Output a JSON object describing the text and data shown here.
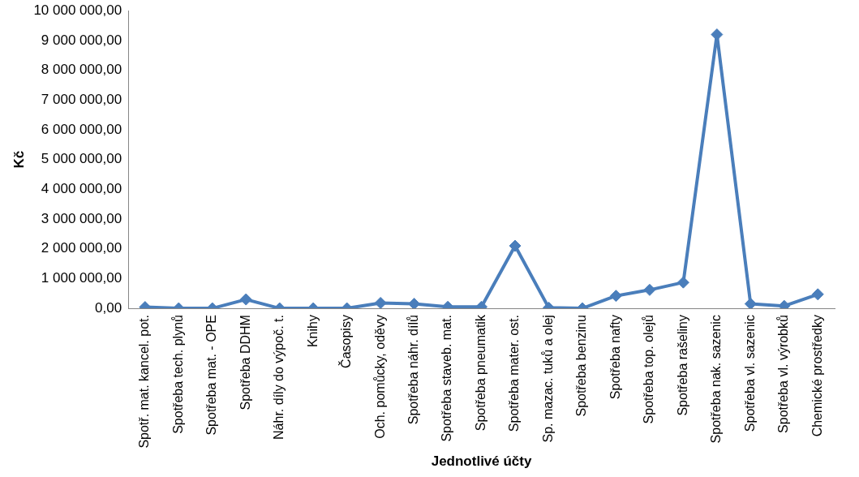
{
  "chart_data": {
    "type": "line",
    "xlabel": "Jednotlivé účty",
    "ylabel": "Kč",
    "categories": [
      "Spotř. mat. kancel. pot.",
      "Spotřeba tech. plynů",
      "Spotřeba mat. - OPE",
      "Spotřeba DDHM",
      "Náhr. díly do výpoč. t.",
      "Knihy",
      "Časopisy",
      "Och. pomůcky, oděvy",
      "Spotřeba náhr. dílů",
      "Spotřeba staveb. mat.",
      "Spotřeba pneumatik",
      "Spotřeba mater. ost.",
      "Sp. mazac. tuků a olej",
      "Spotřeba benzinu",
      "Spotřeba nafty",
      "Spotřeba top. olejů",
      "Spotřeba rašeliny",
      "Spotřeba nak. sazenic",
      "Spotřeba vl. sazenic",
      "Spotřeba vl. výrobků",
      "Chemické prostředky"
    ],
    "series": [
      {
        "color": "#4a7ebb",
        "values": [
          40000,
          0,
          0,
          300000,
          0,
          0,
          0,
          180000,
          150000,
          50000,
          50000,
          2100000,
          20000,
          0,
          420000,
          620000,
          870000,
          9200000,
          150000,
          80000,
          470000
        ]
      }
    ],
    "ylim": [
      0,
      10000000
    ],
    "yticks": [
      {
        "value": 0,
        "label": "0,00"
      },
      {
        "value": 1000000,
        "label": "1 000 000,00"
      },
      {
        "value": 2000000,
        "label": "2 000 000,00"
      },
      {
        "value": 3000000,
        "label": "3 000 000,00"
      },
      {
        "value": 4000000,
        "label": "4 000 000,00"
      },
      {
        "value": 5000000,
        "label": "5 000 000,00"
      },
      {
        "value": 6000000,
        "label": "6 000 000,00"
      },
      {
        "value": 7000000,
        "label": "7 000 000,00"
      },
      {
        "value": 8000000,
        "label": "8 000 000,00"
      },
      {
        "value": 9000000,
        "label": "9 000 000,00"
      },
      {
        "value": 10000000,
        "label": "10 000 000,00"
      }
    ],
    "grid": false,
    "legend": false,
    "marker": "diamond",
    "line_style": "solid"
  }
}
